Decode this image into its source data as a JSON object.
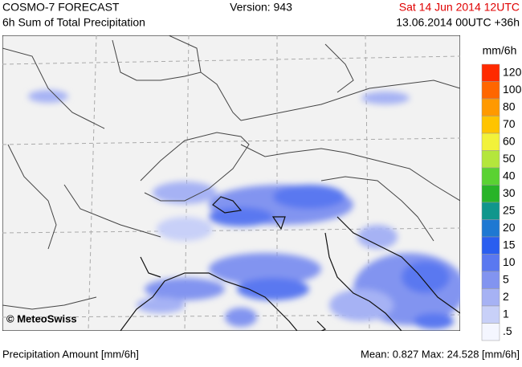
{
  "header": {
    "title": "COSMO-7 FORECAST",
    "subtitle": "6h Sum of Total Precipitation",
    "version": "Version: 943",
    "valid_time": "Sat 14 Jun 2014 12UTC",
    "run": "13.06.2014 00UTC +36h"
  },
  "map": {
    "copyright": "© MeteoSwiss"
  },
  "legend": {
    "unit": "mm/6h",
    "levels": [
      {
        "label": "120",
        "color": "#ff2a00"
      },
      {
        "label": "100",
        "color": "#ff6600"
      },
      {
        "label": "80",
        "color": "#ff9900"
      },
      {
        "label": "70",
        "color": "#ffc400"
      },
      {
        "label": "60",
        "color": "#f2f23a"
      },
      {
        "label": "50",
        "color": "#b4e63c"
      },
      {
        "label": "40",
        "color": "#5ad232"
      },
      {
        "label": "30",
        "color": "#28b428"
      },
      {
        "label": "25",
        "color": "#10968c"
      },
      {
        "label": "20",
        "color": "#1e78d2"
      },
      {
        "label": "15",
        "color": "#2a5ef0"
      },
      {
        "label": "10",
        "color": "#5a78f0"
      },
      {
        "label": "5",
        "color": "#8294f0"
      },
      {
        "label": "2",
        "color": "#a6b2f4"
      },
      {
        "label": "1",
        "color": "#c8d0f8"
      },
      {
        "label": ".5",
        "color": "#f4f6ff"
      }
    ]
  },
  "footer": {
    "label": "Precipitation Amount [mm/6h]",
    "stats": "Mean:  0.827 Max:  24.528 [mm/6h]"
  }
}
